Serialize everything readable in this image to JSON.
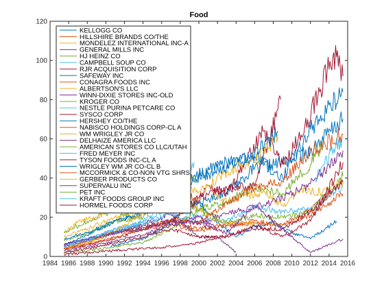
{
  "chart_data": {
    "type": "line",
    "title": "Food",
    "xlabel": "",
    "ylabel": "",
    "xlim": [
      1984,
      2016
    ],
    "ylim": [
      0,
      120
    ],
    "xticks": [
      1984,
      1986,
      1988,
      1990,
      1992,
      1994,
      1996,
      1998,
      2000,
      2002,
      2004,
      2006,
      2008,
      2010,
      2012,
      2014,
      2016
    ],
    "yticks": [
      0,
      20,
      40,
      60,
      80,
      100,
      120
    ],
    "grid": false,
    "legend_position": "top-left",
    "series": [
      {
        "name": "KELLOGG CO",
        "color": "#0072BD",
        "x": [
          1985.5,
          1988,
          1991,
          1994,
          1997,
          2000,
          2003,
          2006,
          2009,
          2012,
          2015.5
        ],
        "y": [
          6,
          11,
          18,
          22,
          35,
          27,
          33,
          45,
          48,
          54,
          70
        ]
      },
      {
        "name": "HILLSHIRE BRANDS CO/THE",
        "color": "#D95319",
        "x": [
          1985.5,
          1988,
          1991,
          1994,
          1997,
          2000,
          2003,
          2006,
          2009,
          2012,
          2014.5
        ],
        "y": [
          4,
          8,
          12,
          16,
          18,
          14,
          16,
          18,
          16,
          24,
          32
        ]
      },
      {
        "name": "MONDELEZ INTERNATIONAL INC-A",
        "color": "#EDB120",
        "x": [
          2001.5,
          2003,
          2005,
          2007,
          2009,
          2011,
          2013,
          2015.5
        ],
        "y": [
          32,
          28,
          31,
          33,
          26,
          34,
          33,
          38
        ]
      },
      {
        "name": "GENERAL MILLS INC",
        "color": "#7E2F8E",
        "x": [
          1985.5,
          1988,
          1991,
          1994,
          1997,
          2000,
          2003,
          2006,
          2009,
          2012,
          2015.5
        ],
        "y": [
          6,
          9,
          13,
          15,
          18,
          17,
          22,
          25,
          30,
          37,
          54
        ]
      },
      {
        "name": "HJ HEINZ CO",
        "color": "#77AC30",
        "x": [
          1985.5,
          1988,
          1991,
          1994,
          1997,
          2000,
          2003,
          2006,
          2009,
          2012,
          2013.4
        ],
        "y": [
          8,
          12,
          18,
          20,
          33,
          24,
          28,
          36,
          32,
          47,
          58
        ]
      },
      {
        "name": "CAMPBELL SOUP CO",
        "color": "#4DBEEE",
        "x": [
          1985.5,
          1988,
          1991,
          1994,
          1997,
          2000,
          2003,
          2006,
          2009,
          2012,
          2015.5
        ],
        "y": [
          5,
          9,
          14,
          17,
          26,
          20,
          18,
          25,
          23,
          24,
          36
        ]
      },
      {
        "name": "RJR ACQUISITION CORP",
        "color": "#A2142F",
        "x": [
          1999.5,
          2001,
          2003,
          2005,
          2007,
          2009,
          2011,
          2013,
          2014.5,
          2015,
          2015.5
        ],
        "y": [
          26,
          36,
          32,
          48,
          64,
          47,
          62,
          84,
          104,
          97,
          92
        ]
      },
      {
        "name": "SAFEWAY INC",
        "color": "#0072BD",
        "x": [
          1990.5,
          1992,
          1994,
          1996,
          1998,
          2000,
          2002,
          2004,
          2006,
          2008,
          2010,
          2012,
          2014.8
        ],
        "y": [
          5,
          7,
          9,
          14,
          22,
          28,
          17,
          10,
          15,
          17,
          12,
          9,
          18
        ]
      },
      {
        "name": "CONAGRA FOODS INC",
        "color": "#D95319",
        "x": [
          1985.5,
          1988,
          1991,
          1994,
          1997,
          2000,
          2003,
          2006,
          2009,
          2012,
          2015.5
        ],
        "y": [
          4,
          7,
          12,
          14,
          16,
          13,
          16,
          17,
          16,
          21,
          32
        ]
      },
      {
        "name": "ALBERTSON'S LLC",
        "color": "#EDB120",
        "x": [
          1985.5,
          1988,
          1991,
          1994,
          1997,
          2000,
          2002,
          2004,
          2006
        ],
        "y": [
          10,
          14,
          20,
          24,
          30,
          24,
          18,
          17,
          17
        ]
      },
      {
        "name": "WINN-DIXIE STORES INC-OLD",
        "color": "#7E2F8E",
        "x": [
          1985.5,
          1988,
          1991,
          1994,
          1997,
          2000,
          2002,
          2004
        ],
        "y": [
          5,
          8,
          12,
          16,
          22,
          10,
          10,
          2
        ]
      },
      {
        "name": "KROGER CO",
        "color": "#77AC30",
        "x": [
          1985.5,
          1988,
          1991,
          1994,
          1997,
          2000,
          2003,
          2006,
          2009,
          2012,
          2015.5
        ],
        "y": [
          2,
          3,
          5,
          7,
          14,
          24,
          17,
          21,
          20,
          23,
          41
        ]
      },
      {
        "name": "NESTLE PURINA PETCARE CO",
        "color": "#4DBEEE",
        "x": [
          1985.5,
          1988,
          1991,
          1994,
          1997,
          2000,
          2001
        ],
        "y": [
          5,
          8,
          14,
          16,
          22,
          17,
          20
        ]
      },
      {
        "name": "SYSCO CORP",
        "color": "#A2142F",
        "x": [
          1985.5,
          1988,
          1991,
          1994,
          1997,
          2000,
          2003,
          2006,
          2008.8
        ],
        "y": [
          4,
          6,
          9,
          14,
          18,
          30,
          35,
          36,
          80
        ]
      },
      {
        "name": "HERSHEY CO/THE",
        "color": "#0072BD",
        "x": [
          1985.5,
          1988,
          1991,
          1994,
          1997,
          2000,
          2003,
          2006,
          2009,
          2012,
          2015.5
        ],
        "y": [
          9,
          12,
          18,
          22,
          34,
          42,
          48,
          51,
          40,
          65,
          84
        ]
      },
      {
        "name": "NABISCO HOLDINGS CORP-CL A",
        "color": "#D95319",
        "x": [
          1995.5,
          1997,
          1998.5,
          2000
        ],
        "y": [
          33,
          38,
          33,
          28
        ]
      },
      {
        "name": "WM WRIGLEY JR CO",
        "color": "#EDB120",
        "x": [
          1985.5,
          1988,
          1991,
          1994,
          1997,
          2000,
          2003,
          2006,
          2008.5
        ],
        "y": [
          4,
          7,
          13,
          22,
          36,
          33,
          43,
          48,
          62
        ]
      },
      {
        "name": "DELHAIZE AMERICA LLC",
        "color": "#7E2F8E",
        "x": [
          1985.5,
          1988,
          1991,
          1994,
          1997,
          2000,
          2002
        ],
        "y": [
          3,
          5,
          8,
          11,
          16,
          20,
          14
        ]
      },
      {
        "name": "AMERICAN STORES CO LLC/UTAH",
        "color": "#77AC30",
        "x": [
          1985.5,
          1988,
          1991,
          1994,
          1997,
          1999.5
        ],
        "y": [
          12,
          18,
          24,
          30,
          34,
          40
        ]
      },
      {
        "name": "FRED MEYER INC",
        "color": "#4DBEEE",
        "x": [
          1986.5,
          1988,
          1991,
          1994,
          1997,
          1999.5
        ],
        "y": [
          7,
          9,
          12,
          18,
          28,
          48
        ]
      },
      {
        "name": "TYSON FOODS INC-CL A",
        "color": "#A2142F",
        "x": [
          1985.5,
          1988,
          1991,
          1994,
          1997,
          2000,
          2003,
          2006,
          2009,
          2012,
          2015.5
        ],
        "y": [
          2,
          4,
          7,
          10,
          14,
          10,
          10,
          16,
          10,
          18,
          48
        ]
      },
      {
        "name": "WRIGLEY WM JR CO-CL B",
        "color": "#0072BD",
        "x": [
          1992.5,
          1995,
          1997,
          2000,
          2003,
          2006,
          2008.5
        ],
        "y": [
          24,
          30,
          37,
          40,
          46,
          52,
          64
        ]
      },
      {
        "name": "MCCORMICK & CO-NON VTG SHRS",
        "color": "#D95319",
        "x": [
          1985.5,
          1988,
          1991,
          1994,
          1997,
          2000,
          2003,
          2006,
          2009,
          2012,
          2015.5
        ],
        "y": [
          4,
          6,
          10,
          14,
          19,
          17,
          27,
          35,
          38,
          54,
          62
        ]
      },
      {
        "name": "GERBER PRODUCTS CO",
        "color": "#EDB120",
        "x": [
          1985.5,
          1987,
          1989,
          1991,
          1993
        ],
        "y": [
          12,
          18,
          20,
          26,
          30
        ]
      },
      {
        "name": "SUPERVALU INC",
        "color": "#7E2F8E",
        "x": [
          1985.5,
          1988,
          1991,
          1994,
          1997,
          2000,
          2003,
          2006,
          2009,
          2012,
          2015.5
        ],
        "y": [
          6,
          9,
          12,
          14,
          18,
          17,
          12,
          26,
          14,
          2,
          9
        ]
      },
      {
        "name": "PET INC",
        "color": "#77AC30",
        "x": [
          1991.5,
          1993,
          1995
        ],
        "y": [
          20,
          24,
          28
        ]
      },
      {
        "name": "KRAFT FOODS GROUP INC",
        "color": "#4DBEEE",
        "x": [
          2012.5,
          2013.5,
          2014.5,
          2015.4
        ],
        "y": [
          40,
          47,
          55,
          60
        ]
      },
      {
        "name": "HORMEL FOODS CORP",
        "color": "#A2142F",
        "x": [
          1985.5,
          1988,
          1991,
          1994,
          1997,
          2000,
          2003,
          2006,
          2009,
          2012,
          2015.5
        ],
        "y": [
          1,
          2,
          3,
          4,
          5,
          7,
          11,
          14,
          14,
          23,
          38
        ]
      }
    ]
  }
}
